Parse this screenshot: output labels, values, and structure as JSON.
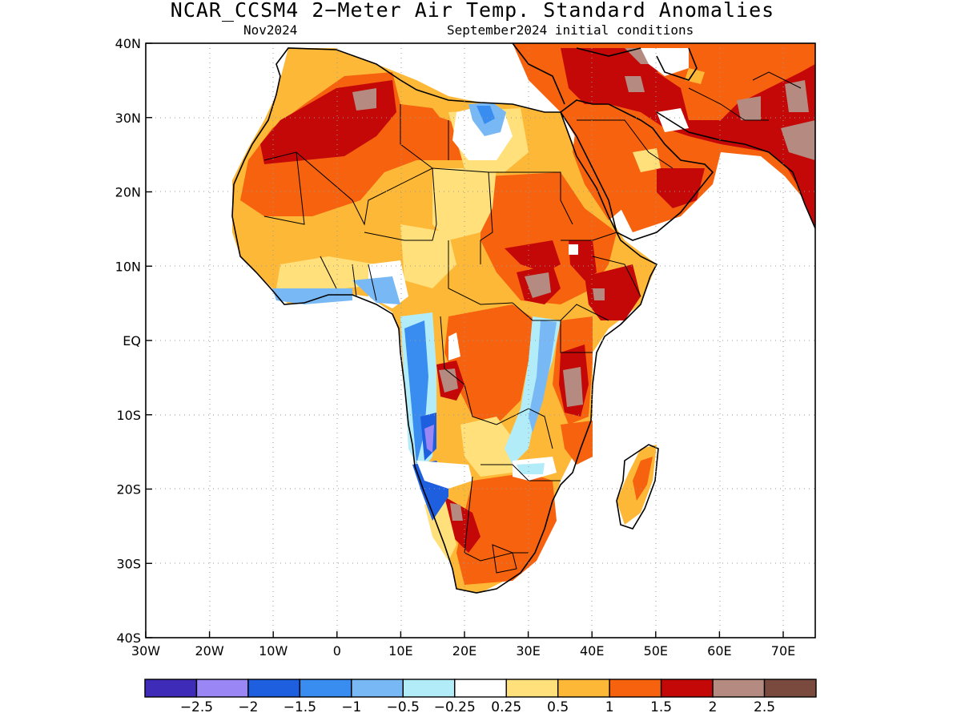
{
  "title": "NCAR_CCSM4 2−Meter Air Temp. Standard Anomalies",
  "subtitle_left": "Nov2024",
  "subtitle_right": "September2024 initial conditions",
  "axes": {
    "lat_labels": [
      "40N",
      "30N",
      "20N",
      "10N",
      "EQ",
      "10S",
      "20S",
      "30S",
      "40S"
    ],
    "lon_labels": [
      "30W",
      "20W",
      "10W",
      "0",
      "10E",
      "20E",
      "30E",
      "40E",
      "50E",
      "60E",
      "70E"
    ]
  },
  "colorbar": {
    "colors": [
      "#3e2bb8",
      "#9b86f5",
      "#1e5fe0",
      "#3a8df0",
      "#78b9f5",
      "#b2ecf8",
      "#ffffff",
      "#ffe07a",
      "#fdb838",
      "#f6620e",
      "#c40808",
      "#b58a80",
      "#7a4a3e"
    ],
    "tick_labels": [
      "−2.5",
      "−2",
      "−1.5",
      "−1",
      "−0.5",
      "−0.25",
      "0.25",
      "0.5",
      "1",
      "1.5",
      "2",
      "2.5"
    ]
  },
  "grid": true
}
